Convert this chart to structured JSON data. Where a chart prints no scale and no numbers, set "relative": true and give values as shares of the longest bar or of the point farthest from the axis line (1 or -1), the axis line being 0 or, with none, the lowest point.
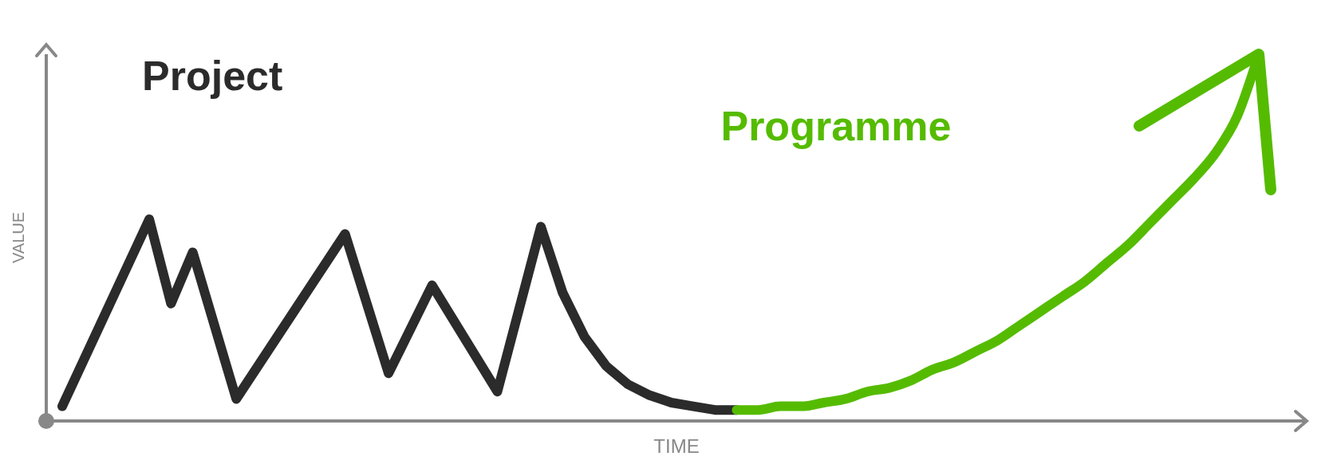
{
  "chart_data": {
    "type": "line",
    "xlabel": "TIME",
    "ylabel": "VALUE",
    "relative": true,
    "legend": false,
    "grid": false,
    "marker": "none",
    "line_style": "solid",
    "categories": [
      null,
      null,
      null,
      null,
      null,
      null,
      null,
      null,
      null,
      null,
      null,
      null,
      null,
      null,
      null,
      null,
      null,
      null,
      null,
      null,
      null,
      null,
      null,
      null,
      null,
      null,
      null,
      null,
      null,
      null,
      null,
      null,
      null,
      null,
      null,
      null,
      null,
      null,
      null,
      null,
      null,
      null,
      null,
      null,
      null,
      null,
      null,
      null,
      null,
      null,
      null,
      null,
      null,
      null,
      null,
      null
    ],
    "series": [
      {
        "name": "Project",
        "color": "#2b2b2b",
        "values": [
          0.04,
          null,
          null,
          null,
          0.55,
          0.32,
          0.46,
          null,
          0.06,
          null,
          null,
          null,
          null,
          0.51,
          null,
          0.13,
          null,
          0.37,
          null,
          null,
          0.08,
          null,
          0.53,
          0.35,
          0.23,
          0.15,
          0.1,
          0.07,
          0.05,
          0.04,
          0.03,
          0.03,
          null,
          null,
          null,
          null,
          null,
          null,
          null,
          null,
          null,
          null,
          null,
          null,
          null,
          null,
          null,
          null,
          null,
          null,
          null,
          null,
          null,
          null,
          null,
          null
        ]
      },
      {
        "name": "Programme",
        "color": "#55bb00",
        "values": [
          null,
          null,
          null,
          null,
          null,
          null,
          null,
          null,
          null,
          null,
          null,
          null,
          null,
          null,
          null,
          null,
          null,
          null,
          null,
          null,
          null,
          null,
          null,
          null,
          null,
          null,
          null,
          null,
          null,
          null,
          null,
          0.03,
          0.03,
          0.04,
          0.04,
          0.05,
          0.06,
          0.08,
          0.09,
          0.11,
          0.14,
          0.16,
          0.19,
          0.22,
          0.26,
          0.3,
          0.34,
          0.38,
          0.43,
          0.48,
          0.54,
          0.6,
          0.66,
          0.73,
          0.83,
          1
        ]
      }
    ]
  }
}
